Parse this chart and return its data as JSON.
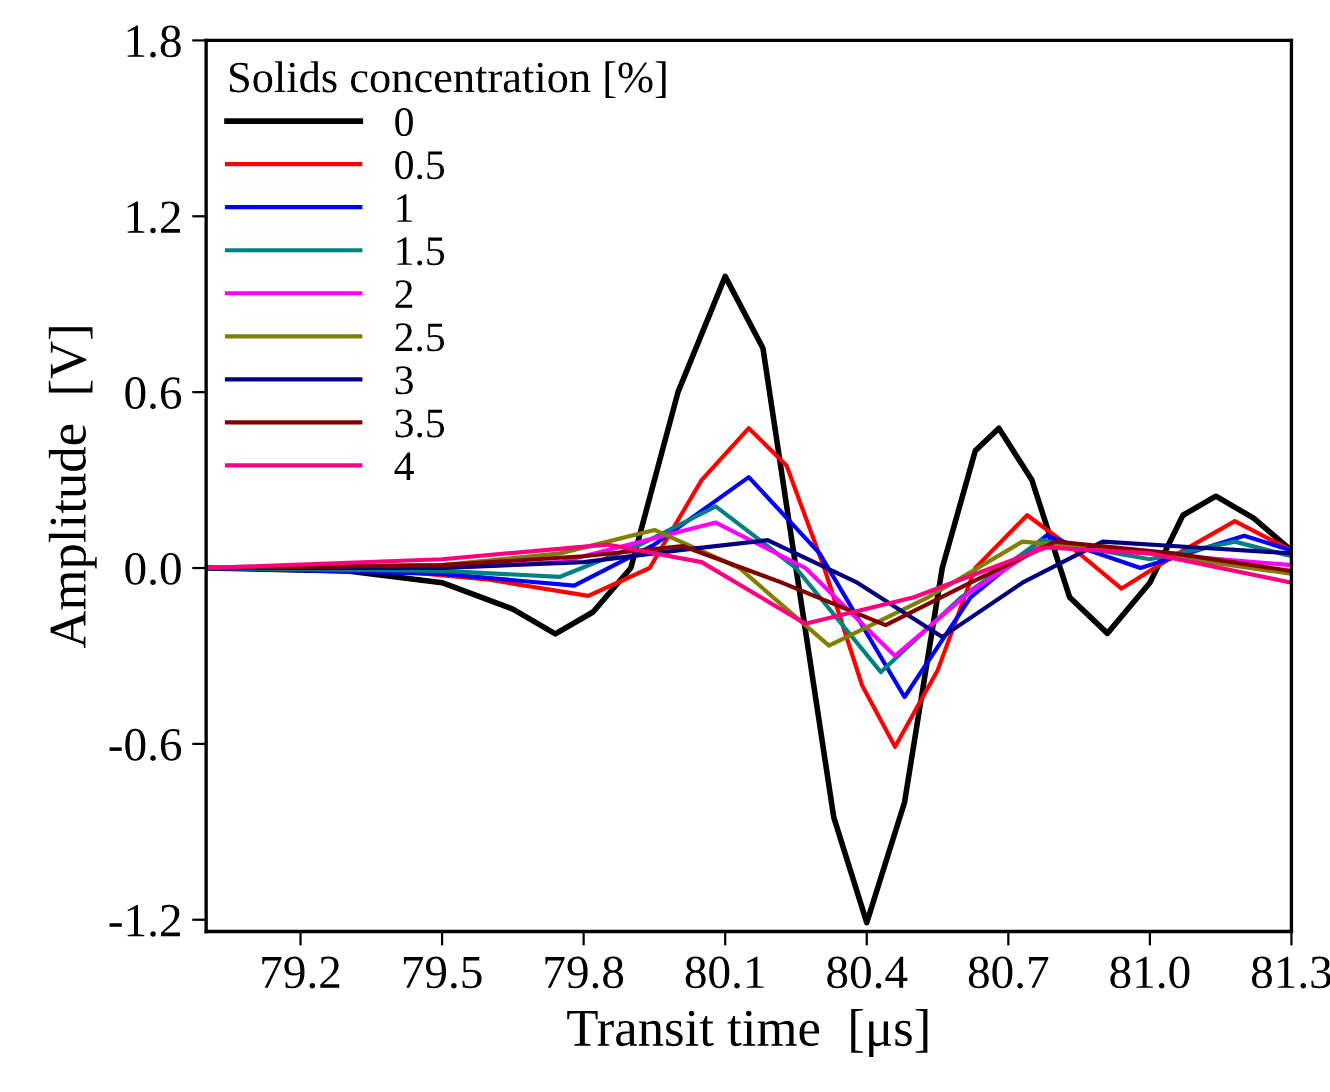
{
  "chart_data": {
    "type": "line",
    "xlabel": "Transit time  [μs]",
    "ylabel": "Amplitude  [V]",
    "legend_title": "Solids concentration [%]",
    "legend": "top left",
    "grid": false,
    "marker": "none",
    "line_style": "solid",
    "xlim": [
      79.0,
      81.3
    ],
    "xticks": [
      79.2,
      79.5,
      79.8,
      80.1,
      80.4,
      80.7,
      {
        "value": 81.0,
        "label": "81.0"
      },
      81.3
    ],
    "ylim": [
      -1.24,
      1.8
    ],
    "yticks": [
      {
        "value": -1.2,
        "label": "-1.2"
      },
      {
        "value": -0.6,
        "label": "-0.6"
      },
      {
        "value": 0.0,
        "label": "0.0"
      },
      0.6,
      1.2,
      1.8
    ],
    "series": [
      {
        "name": "0",
        "color": "#000000",
        "x": [
          79.0,
          79.3,
          79.5,
          79.65,
          79.74,
          79.82,
          79.9,
          80.0,
          80.1,
          80.18,
          80.25,
          80.33,
          80.4,
          80.48,
          80.56,
          80.63,
          80.68,
          80.75,
          80.83,
          80.91,
          81.0,
          81.07,
          81.14,
          81.22,
          81.3
        ],
        "values": [
          0,
          -0.01,
          -0.05,
          -0.14,
          -0.225,
          -0.15,
          0.0,
          0.6,
          0.995,
          0.75,
          0.0,
          -0.85,
          -1.21,
          -0.8,
          0.0,
          0.4,
          0.477,
          0.3,
          -0.1,
          -0.223,
          -0.05,
          0.18,
          0.245,
          0.17,
          0.06
        ]
      },
      {
        "name": "0.5",
        "color": "#ff0000",
        "x": [
          79.0,
          79.4,
          79.6,
          79.81,
          79.94,
          80.05,
          80.15,
          80.23,
          80.31,
          80.39,
          80.46,
          80.55,
          80.63,
          80.74,
          80.85,
          80.94,
          81.06,
          81.18,
          81.3
        ],
        "values": [
          0,
          -0.01,
          -0.04,
          -0.095,
          0.0,
          0.3,
          0.477,
          0.35,
          0.0,
          -0.4,
          -0.61,
          -0.35,
          0.0,
          0.18,
          0.05,
          -0.07,
          0.05,
          0.16,
          0.06
        ]
      },
      {
        "name": "1",
        "color": "#0000ff",
        "x": [
          79.0,
          79.5,
          79.78,
          79.95,
          80.15,
          80.3,
          80.48,
          80.62,
          80.78,
          80.98,
          81.2,
          81.3
        ],
        "values": [
          0,
          -0.02,
          -0.06,
          0.08,
          0.31,
          0.05,
          -0.44,
          -0.1,
          0.11,
          0.0,
          0.11,
          0.06
        ]
      },
      {
        "name": "1.5",
        "color": "#008080",
        "x": [
          79.0,
          79.5,
          79.75,
          79.92,
          80.08,
          80.25,
          80.43,
          80.6,
          80.77,
          81.0,
          81.18,
          81.3
        ],
        "values": [
          0,
          -0.01,
          -0.03,
          0.08,
          0.21,
          0.0,
          -0.355,
          -0.1,
          0.095,
          0.03,
          0.09,
          0.04
        ]
      },
      {
        "name": "2",
        "color": "#ff00ff",
        "x": [
          79.0,
          79.5,
          79.75,
          80.08,
          80.27,
          80.46,
          80.62,
          80.78,
          81.0,
          81.3
        ],
        "values": [
          0,
          0.0,
          0.02,
          0.155,
          0.0,
          -0.3,
          -0.08,
          0.085,
          0.05,
          0.01
        ]
      },
      {
        "name": "2.5",
        "color": "#808000",
        "x": [
          79.0,
          79.5,
          79.75,
          79.95,
          80.13,
          80.32,
          80.53,
          80.73,
          81.0,
          81.3
        ],
        "values": [
          0,
          0.01,
          0.05,
          0.13,
          0.0,
          -0.265,
          -0.1,
          0.09,
          0.05,
          -0.02
        ]
      },
      {
        "name": "3",
        "color": "#000080",
        "x": [
          79.0,
          79.5,
          79.8,
          80.0,
          80.19,
          80.38,
          80.56,
          80.73,
          80.9,
          81.1,
          81.3
        ],
        "values": [
          0,
          0.0,
          0.02,
          0.06,
          0.095,
          -0.05,
          -0.235,
          -0.05,
          0.09,
          0.07,
          0.05
        ]
      },
      {
        "name": "3.5",
        "color": "#800000",
        "x": [
          79.0,
          79.5,
          79.8,
          80.01,
          80.22,
          80.44,
          80.62,
          80.8,
          81.05,
          81.3
        ],
        "values": [
          0,
          0.01,
          0.04,
          0.075,
          -0.05,
          -0.195,
          -0.05,
          0.09,
          0.05,
          -0.01
        ]
      },
      {
        "name": "4",
        "color": "#ff0080",
        "x": [
          79.0,
          79.5,
          79.85,
          80.05,
          80.27,
          80.5,
          80.78,
          81.0,
          81.3
        ],
        "values": [
          0,
          0.03,
          0.08,
          0.02,
          -0.19,
          -0.1,
          0.07,
          0.05,
          -0.05
        ]
      }
    ]
  }
}
